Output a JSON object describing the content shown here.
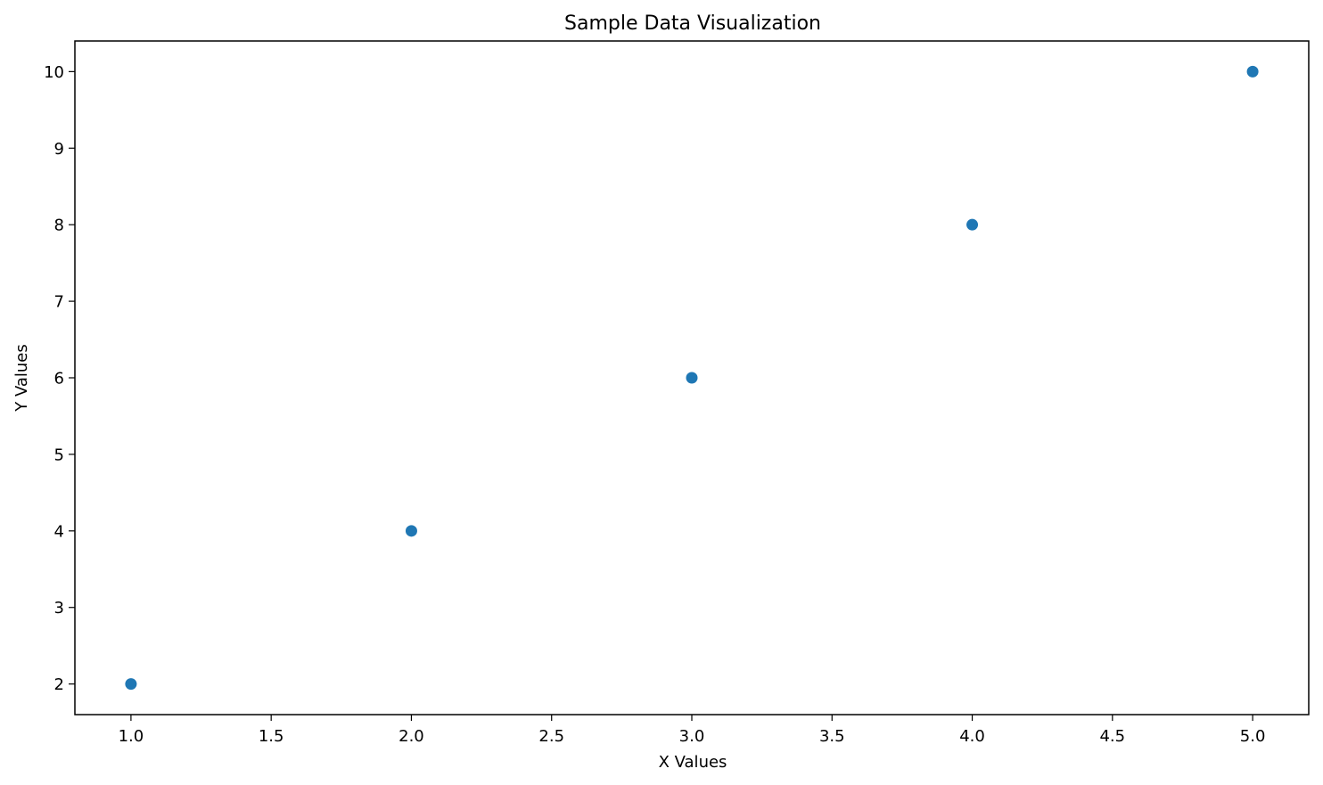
{
  "chart_data": {
    "type": "scatter",
    "title": "Sample Data Visualization",
    "xlabel": "X Values",
    "ylabel": "Y Values",
    "xlim": [
      0.8,
      5.2
    ],
    "ylim": [
      1.6,
      10.4
    ],
    "xticks": [
      1.0,
      1.5,
      2.0,
      2.5,
      3.0,
      3.5,
      4.0,
      4.5,
      5.0
    ],
    "xtick_labels": [
      "1.0",
      "1.5",
      "2.0",
      "2.5",
      "3.0",
      "3.5",
      "4.0",
      "4.5",
      "5.0"
    ],
    "yticks": [
      2,
      3,
      4,
      5,
      6,
      7,
      8,
      9,
      10
    ],
    "ytick_labels": [
      "2",
      "3",
      "4",
      "5",
      "6",
      "7",
      "8",
      "9",
      "10"
    ],
    "grid": false,
    "marker_color": "#1f77b4",
    "series": [
      {
        "x": [
          1,
          2,
          3,
          4,
          5
        ],
        "y": [
          2,
          4,
          6,
          8,
          10
        ]
      }
    ]
  }
}
